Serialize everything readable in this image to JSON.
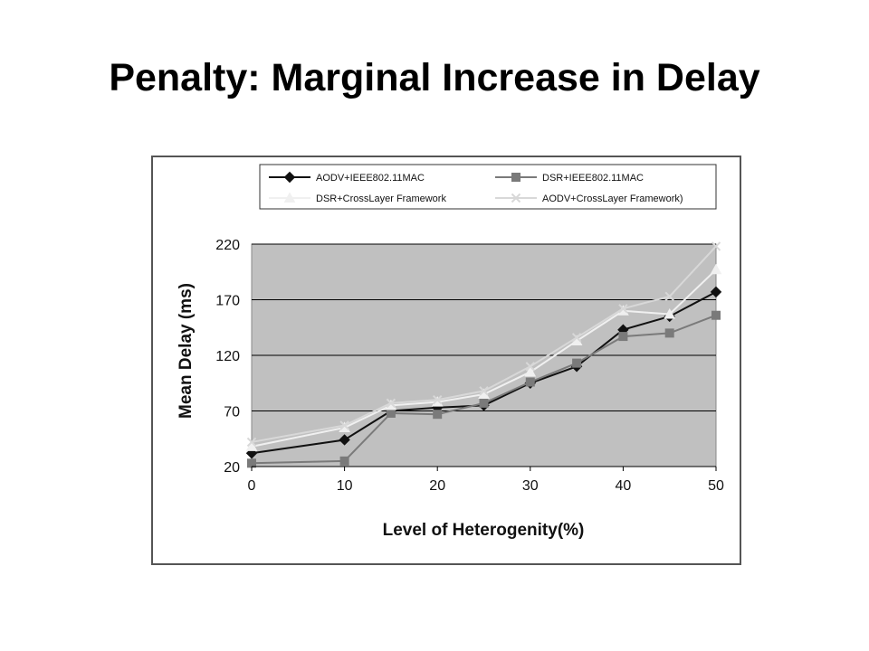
{
  "slide": {
    "title": "Penalty: Marginal Increase in Delay"
  },
  "chart_data": {
    "type": "line",
    "title": "",
    "xlabel": "Level of Heterogenity(%)",
    "ylabel": "Mean Delay (ms)",
    "xlim": [
      0,
      50
    ],
    "ylim": [
      20,
      220
    ],
    "xticks": [
      "0",
      "10",
      "20",
      "30",
      "40",
      "50"
    ],
    "yticks": [
      "220",
      "170",
      "120",
      "70",
      "20"
    ],
    "grid": "horizontal",
    "legend_position": "top",
    "plot_background": "#c0c0c0",
    "series": [
      {
        "name": "AODV+IEEE802.11MAC",
        "color": "#111111",
        "marker": "diamond",
        "x": [
          0,
          10,
          15,
          20,
          25,
          30,
          35,
          40,
          45,
          50
        ],
        "values": [
          32,
          44,
          70,
          73,
          75,
          95,
          110,
          143,
          155,
          177
        ]
      },
      {
        "name": "DSR+IEEE802.11MAC",
        "color": "#7a7a7a",
        "marker": "square",
        "x": [
          0,
          10,
          15,
          20,
          25,
          30,
          35,
          40,
          45,
          50
        ],
        "values": [
          23,
          25,
          68,
          67,
          77,
          96,
          113,
          137,
          140,
          156
        ]
      },
      {
        "name": "DSR+CrossLayer Framework",
        "color": "#f0f0f0",
        "marker": "triangle",
        "x": [
          0,
          10,
          15,
          20,
          25,
          30,
          35,
          40,
          45,
          50
        ],
        "values": [
          38,
          55,
          75,
          78,
          85,
          105,
          133,
          160,
          157,
          197
        ]
      },
      {
        "name": "AODV+CrossLayer Framework)",
        "color": "#d8d8d8",
        "marker": "x",
        "x": [
          0,
          10,
          15,
          20,
          25,
          30,
          35,
          40,
          45,
          50
        ],
        "values": [
          42,
          57,
          77,
          80,
          88,
          110,
          136,
          162,
          173,
          218
        ]
      }
    ]
  }
}
